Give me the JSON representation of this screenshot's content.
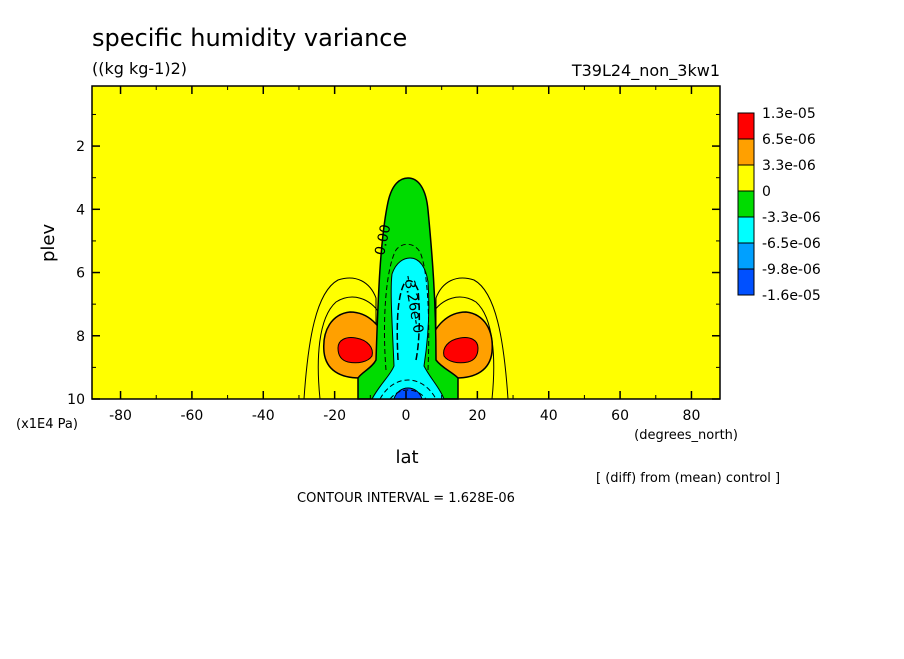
{
  "chart_data": {
    "type": "heatmap",
    "title": "specific humidity variance",
    "units": "((kg kg-1)2)",
    "run_label": "T39L24_non_3kw1",
    "xlabel": "lat",
    "x_units": "(degrees_north)",
    "ylabel": "plev",
    "y_units": "(x1E4 Pa)",
    "xlim": [
      -88,
      88
    ],
    "ylim": [
      10,
      0.1
    ],
    "x_ticks": [
      "-80",
      "-60",
      "-40",
      "-20",
      "0",
      "20",
      "40",
      "60",
      "80"
    ],
    "y_ticks": [
      "2",
      "4",
      "6",
      "8",
      "10"
    ],
    "legend": {
      "placement": "right",
      "labels": [
        "1.3e-05",
        "6.5e-06",
        "3.3e-06",
        "0",
        "-3.3e-06",
        "-6.5e-06",
        "-9.8e-06",
        "-1.6e-05"
      ],
      "colors": [
        "#ff0000",
        "#ffa000",
        "#ffff00",
        "#00dc00",
        "#00ffff",
        "#00a0ff",
        "#0050ff"
      ]
    },
    "contour_labels": [
      "0.00",
      "-3.26e-0"
    ],
    "contour_interval_text": "CONTOUR INTERVAL = 1.628E-06",
    "diff_note": "[ (diff) from (mean) control ]",
    "features": [
      {
        "kind": "positive maximum",
        "lat": -15,
        "plev": 8.4,
        "value": 1.3e-05
      },
      {
        "kind": "positive maximum",
        "lat": 15,
        "plev": 8.4,
        "value": 1.3e-05
      },
      {
        "kind": "negative minimum",
        "lat": 0,
        "plev": 9.9,
        "value": -1.6e-05
      },
      {
        "kind": "negative column",
        "lat": 0,
        "plev_range": [
          3.0,
          10
        ],
        "value": -3.3e-06
      }
    ]
  }
}
